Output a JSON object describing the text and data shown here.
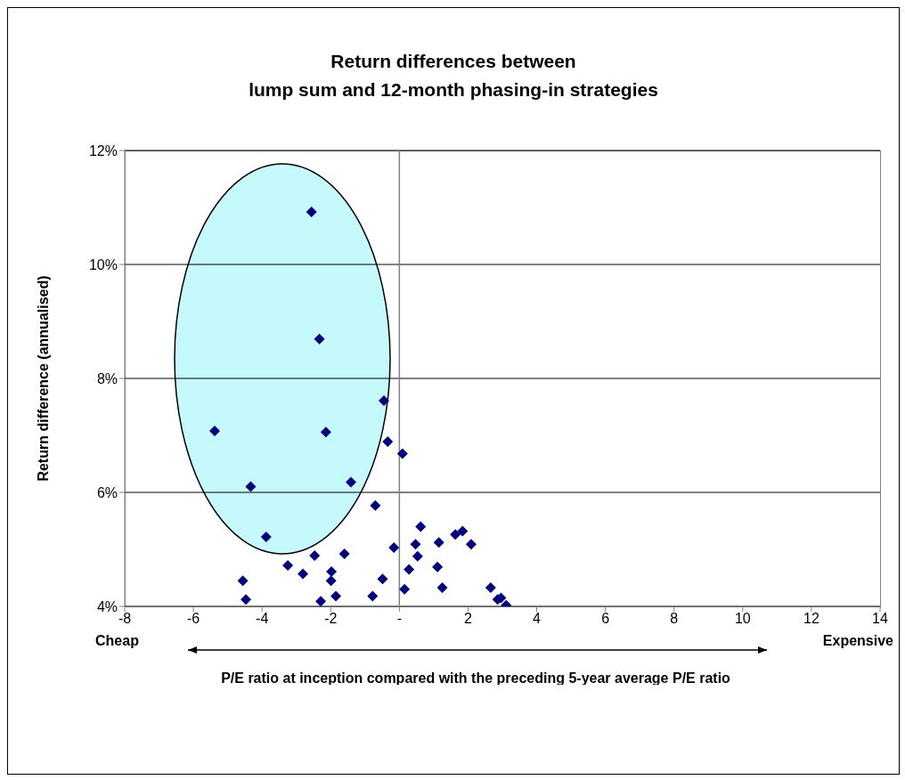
{
  "chart_data": {
    "type": "scatter",
    "title": "Return differences between\nlump sum and 12-month phasing-in strategies",
    "xlabel": "P/E ratio at inception compared with the preceding 5-year average P/E ratio",
    "ylabel": "Return difference (annualised)",
    "x": [
      -2.56,
      -2.33,
      -0.45,
      -5.38,
      -2.14,
      -0.34,
      0.09,
      -4.33,
      -1.41,
      -0.7,
      -3.88,
      0.62,
      1.63,
      1.84,
      2.09,
      1.15,
      0.47,
      -0.16,
      0.53,
      -2.47,
      -1.6,
      -3.25,
      -2.81,
      -1.98,
      -1.99,
      -4.56,
      -0.49,
      0.28,
      1.11,
      1.25,
      0.15,
      -0.78,
      -1.85,
      -2.29,
      -4.47,
      2.66,
      2.86,
      2.96,
      3.11
    ],
    "values": [
      10.92,
      8.69,
      7.61,
      7.08,
      7.06,
      6.89,
      6.68,
      6.1,
      6.18,
      5.77,
      5.22,
      5.4,
      5.26,
      5.32,
      5.09,
      5.12,
      5.09,
      5.03,
      4.88,
      4.89,
      4.92,
      4.72,
      4.57,
      4.61,
      4.45,
      4.45,
      4.48,
      4.65,
      4.69,
      4.33,
      4.3,
      4.18,
      4.18,
      4.09,
      4.12,
      4.33,
      4.12,
      4.15,
      4.02
    ],
    "color": "#000080",
    "marker": "diamond",
    "xlim": [
      -8,
      14
    ],
    "xticks": [
      -8,
      -6,
      -4,
      -2,
      {
        "value": 0,
        "label": "-"
      },
      2,
      4,
      6,
      8,
      10,
      12,
      14
    ],
    "ylim": [
      4,
      12
    ],
    "yticks": [
      {
        "value": 4,
        "label": "4%"
      },
      {
        "value": 6,
        "label": "6%"
      },
      {
        "value": 8,
        "label": "8%"
      },
      {
        "value": 10,
        "label": "10%"
      },
      {
        "value": 12,
        "label": "12%"
      }
    ],
    "grid": "y",
    "ref_lines": [
      {
        "axis": "x",
        "value": 0,
        "color": "#808080"
      }
    ],
    "annotations": [
      "Cheap",
      "Expensive"
    ]
  }
}
